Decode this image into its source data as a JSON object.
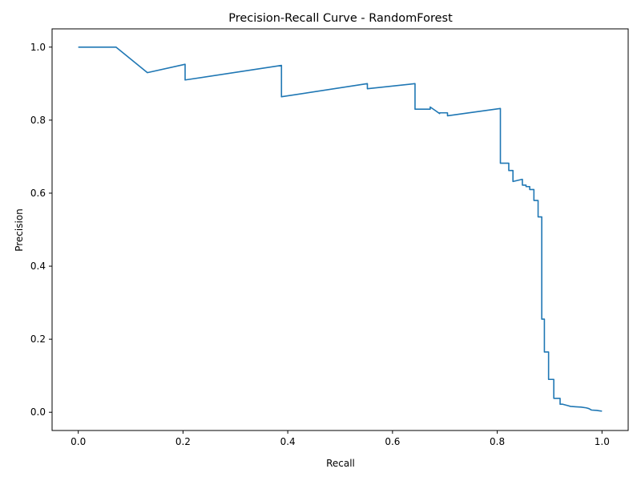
{
  "chart_data": {
    "type": "line",
    "title": "Precision-Recall Curve - RandomForest",
    "xlabel": "Recall",
    "ylabel": "Precision",
    "xlim": [
      -0.05,
      1.05
    ],
    "ylim": [
      -0.05,
      1.05
    ],
    "xticks": [
      0.0,
      0.2,
      0.4,
      0.6,
      0.8,
      1.0
    ],
    "yticks": [
      0.0,
      0.2,
      0.4,
      0.6,
      0.8,
      1.0
    ],
    "xtick_labels": [
      "0.0",
      "0.2",
      "0.4",
      "0.6",
      "0.8",
      "1.0"
    ],
    "ytick_labels": [
      "0.0",
      "0.2",
      "0.4",
      "0.6",
      "0.8",
      "1.0"
    ],
    "grid": false,
    "line_color": "#1f77b4",
    "series": [
      {
        "x": [
          1.0,
          0.995,
          0.99,
          0.98,
          0.975,
          0.97,
          0.96,
          0.95,
          0.94,
          0.935,
          0.93,
          0.925,
          0.92,
          0.92,
          0.908,
          0.908,
          0.898,
          0.898,
          0.89,
          0.89,
          0.885,
          0.885,
          0.878,
          0.878,
          0.87,
          0.87,
          0.862,
          0.862,
          0.855,
          0.855,
          0.848,
          0.848,
          0.83,
          0.83,
          0.822,
          0.822,
          0.813,
          0.813,
          0.806,
          0.806,
          0.705,
          0.705,
          0.69,
          0.69,
          0.682,
          0.682,
          0.672,
          0.672,
          0.643,
          0.643,
          0.552,
          0.552,
          0.388,
          0.388,
          0.204,
          0.204,
          0.132,
          0.072,
          0.0
        ],
        "y": [
          0.003,
          0.004,
          0.005,
          0.006,
          0.01,
          0.012,
          0.014,
          0.015,
          0.016,
          0.018,
          0.02,
          0.022,
          0.022,
          0.038,
          0.038,
          0.09,
          0.09,
          0.165,
          0.165,
          0.255,
          0.255,
          0.535,
          0.535,
          0.58,
          0.58,
          0.61,
          0.61,
          0.618,
          0.618,
          0.622,
          0.622,
          0.638,
          0.632,
          0.662,
          0.662,
          0.682,
          0.682,
          0.682,
          0.682,
          0.832,
          0.812,
          0.82,
          0.82,
          0.818,
          0.826,
          0.826,
          0.836,
          0.83,
          0.83,
          0.9,
          0.886,
          0.9,
          0.864,
          0.95,
          0.91,
          0.953,
          0.93,
          1.0,
          1.0
        ]
      }
    ]
  }
}
